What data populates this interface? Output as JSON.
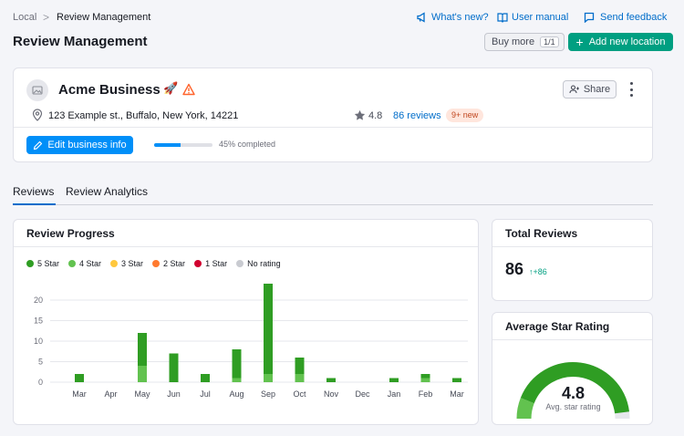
{
  "breadcrumb": {
    "root": "Local",
    "separator": ">",
    "current": "Review Management"
  },
  "header_links": {
    "whats_new": "What's new?",
    "user_manual": "User manual",
    "feedback": "Send feedback"
  },
  "page": {
    "title": "Review Management",
    "buy_more_label": "Buy more",
    "buy_more_count": "1/1",
    "add_location_label": "Add new location"
  },
  "business": {
    "name": "Acme Business",
    "emoji": "🚀",
    "share_label": "Share",
    "address": "123 Example st., Buffalo, New York, 14221",
    "rating": "4.8",
    "reviews_link": "86 reviews",
    "new_badge": "9+ new",
    "edit_label": "Edit business info",
    "progress_fraction": 0.45,
    "progress_text": "45% completed"
  },
  "tabs": [
    {
      "label": "Reviews",
      "active": true
    },
    {
      "label": "Review Analytics",
      "active": false
    }
  ],
  "review_progress": {
    "title": "Review Progress",
    "legend": [
      {
        "label": "5 Star",
        "color": "#2f9d23"
      },
      {
        "label": "4 Star",
        "color": "#62c24f"
      },
      {
        "label": "3 Star",
        "color": "#ffc83d"
      },
      {
        "label": "2 Star",
        "color": "#ff7a2f"
      },
      {
        "label": "1 Star",
        "color": "#d1002f"
      },
      {
        "label": "No rating",
        "color": "#c9cbd1"
      }
    ]
  },
  "chart_data": {
    "type": "bar",
    "stacked": true,
    "categories": [
      "Mar",
      "Apr",
      "May",
      "Jun",
      "Jul",
      "Aug",
      "Sep",
      "Oct",
      "Nov",
      "Dec",
      "Jan",
      "Feb",
      "Mar"
    ],
    "series": [
      {
        "name": "5 Star",
        "color": "#2f9d23",
        "values": [
          2,
          0,
          8,
          7,
          2,
          7,
          22,
          4,
          1,
          0,
          1,
          1,
          1
        ]
      },
      {
        "name": "4 Star",
        "color": "#62c24f",
        "values": [
          0,
          0,
          4,
          0,
          0,
          1,
          2,
          2,
          0,
          0,
          0,
          1,
          0
        ]
      }
    ],
    "yticks": [
      "0",
      "5",
      "10",
      "15",
      "20"
    ],
    "ylim": [
      0,
      24
    ],
    "grid": true
  },
  "total_reviews": {
    "title": "Total Reviews",
    "value": "86",
    "delta": "↑+86"
  },
  "average_rating": {
    "title": "Average Star Rating",
    "value": "4.8",
    "caption": "Avg. star rating",
    "fraction": 0.96,
    "color": "#2f9d23",
    "light_color": "#62c24f"
  }
}
